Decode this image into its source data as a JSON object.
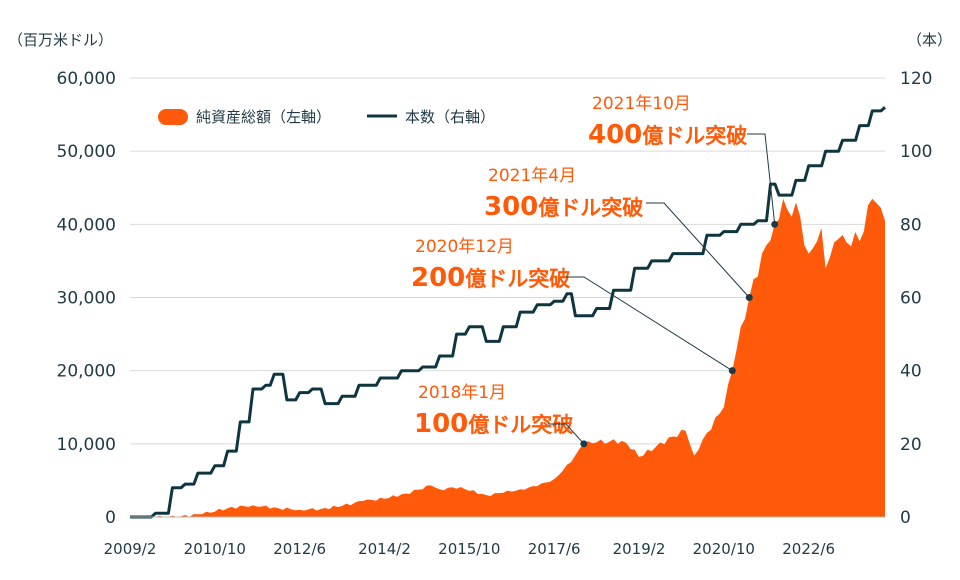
{
  "chart_data": {
    "type": "area+line",
    "left_unit": "（百万米ドル）",
    "right_unit": "（本）",
    "left_ylim": [
      0,
      60000
    ],
    "right_ylim": [
      0,
      120
    ],
    "left_ticks": [
      "0",
      "10,000",
      "20,000",
      "30,000",
      "40,000",
      "50,000",
      "60,000"
    ],
    "right_ticks": [
      "0",
      "20",
      "40",
      "60",
      "80",
      "100",
      "120"
    ],
    "x_ticks": [
      "2009/2",
      "2010/10",
      "2012/6",
      "2014/2",
      "2015/10",
      "2017/6",
      "2019/2",
      "2020/10",
      "2022/6"
    ],
    "x_range": [
      "2009/2",
      "2023/12"
    ],
    "colors": {
      "area": "#ff5a0a",
      "line": "#0f3640",
      "grid": "#d9d9d9",
      "annotation": "#ff5a0a"
    },
    "series": [
      {
        "name": "純資産総額（左軸）",
        "kind": "area",
        "axis": "left",
        "points": [
          [
            "2009/2",
            0
          ],
          [
            "2010/1",
            0
          ],
          [
            "2010/7",
            400
          ],
          [
            "2011/1",
            1200
          ],
          [
            "2011/7",
            1600
          ],
          [
            "2012/1",
            1200
          ],
          [
            "2012/6",
            1000
          ],
          [
            "2012/11",
            1100
          ],
          [
            "2013/4",
            1500
          ],
          [
            "2013/9",
            2200
          ],
          [
            "2014/2",
            2500
          ],
          [
            "2014/7",
            3200
          ],
          [
            "2015/1",
            4300
          ],
          [
            "2015/3",
            3800
          ],
          [
            "2015/8",
            4100
          ],
          [
            "2015/10",
            3600
          ],
          [
            "2016/2",
            3000
          ],
          [
            "2016/6",
            3300
          ],
          [
            "2016/10",
            3800
          ],
          [
            "2017/2",
            4200
          ],
          [
            "2017/6",
            5200
          ],
          [
            "2017/10",
            7500
          ],
          [
            "2018/1",
            10000
          ],
          [
            "2018/4",
            10200
          ],
          [
            "2018/10",
            10400
          ],
          [
            "2019/1",
            9200
          ],
          [
            "2019/2",
            8200
          ],
          [
            "2019/6",
            9600
          ],
          [
            "2019/10",
            11000
          ],
          [
            "2020/1",
            11800
          ],
          [
            "2020/3",
            8400
          ],
          [
            "2020/6",
            11500
          ],
          [
            "2020/10",
            15000
          ],
          [
            "2020/12",
            20000
          ],
          [
            "2021/2",
            26000
          ],
          [
            "2021/4",
            30000
          ],
          [
            "2021/7",
            36000
          ],
          [
            "2021/10",
            40000
          ],
          [
            "2021/12",
            43500
          ],
          [
            "2022/1",
            42000
          ],
          [
            "2022/3",
            43000
          ],
          [
            "2022/6",
            36000
          ],
          [
            "2022/9",
            39500
          ],
          [
            "2022/10",
            34000
          ],
          [
            "2023/1",
            38000
          ],
          [
            "2023/4",
            37000
          ],
          [
            "2023/7",
            39000
          ],
          [
            "2023/9",
            43500
          ],
          [
            "2023/12",
            40500
          ]
        ]
      },
      {
        "name": "本数（右軸）",
        "kind": "line",
        "axis": "right",
        "points": [
          [
            "2009/2",
            0
          ],
          [
            "2009/8",
            1
          ],
          [
            "2009/12",
            8
          ],
          [
            "2010/3",
            9
          ],
          [
            "2010/6",
            12
          ],
          [
            "2010/10",
            14
          ],
          [
            "2011/1",
            18
          ],
          [
            "2011/4",
            26
          ],
          [
            "2011/7",
            35
          ],
          [
            "2011/10",
            36
          ],
          [
            "2011/12",
            39
          ],
          [
            "2012/3",
            32
          ],
          [
            "2012/6",
            34
          ],
          [
            "2012/9",
            35
          ],
          [
            "2012/12",
            31
          ],
          [
            "2013/4",
            33
          ],
          [
            "2013/8",
            36
          ],
          [
            "2014/1",
            38
          ],
          [
            "2014/6",
            40
          ],
          [
            "2014/11",
            41
          ],
          [
            "2015/3",
            44
          ],
          [
            "2015/7",
            50
          ],
          [
            "2015/10",
            52
          ],
          [
            "2016/2",
            48
          ],
          [
            "2016/6",
            52
          ],
          [
            "2016/10",
            56
          ],
          [
            "2017/2",
            58
          ],
          [
            "2017/6",
            59
          ],
          [
            "2017/9",
            61
          ],
          [
            "2017/11",
            55
          ],
          [
            "2018/4",
            57
          ],
          [
            "2018/8",
            62
          ],
          [
            "2019/1",
            68
          ],
          [
            "2019/5",
            70
          ],
          [
            "2019/10",
            72
          ],
          [
            "2020/3",
            72
          ],
          [
            "2020/6",
            77
          ],
          [
            "2020/10",
            78
          ],
          [
            "2021/2",
            80
          ],
          [
            "2021/6",
            81
          ],
          [
            "2021/9",
            91
          ],
          [
            "2021/11",
            88
          ],
          [
            "2022/3",
            92
          ],
          [
            "2022/6",
            96
          ],
          [
            "2022/10",
            100
          ],
          [
            "2023/2",
            103
          ],
          [
            "2023/6",
            107
          ],
          [
            "2023/9",
            111
          ],
          [
            "2023/12",
            112
          ]
        ]
      }
    ],
    "annotations": [
      {
        "line1": "2018年1月",
        "num": "100",
        "text": "億ドル突破",
        "at": "2018/1",
        "value": 10000
      },
      {
        "line1": "2020年12月",
        "num": "200",
        "text": "億ドル突破",
        "at": "2020/12",
        "value": 20000
      },
      {
        "line1": "2021年4月",
        "num": "300",
        "text": "億ドル突破",
        "at": "2021/4",
        "value": 30000
      },
      {
        "line1": "2021年10月",
        "num": "400",
        "text": "億ドル突破",
        "at": "2021/10",
        "value": 40000
      }
    ],
    "legend": [
      {
        "label": "純資産総額（左軸）",
        "kind": "area"
      },
      {
        "label": "本数（右軸）",
        "kind": "line"
      }
    ],
    "legend_position": "top-left",
    "grid": true
  }
}
